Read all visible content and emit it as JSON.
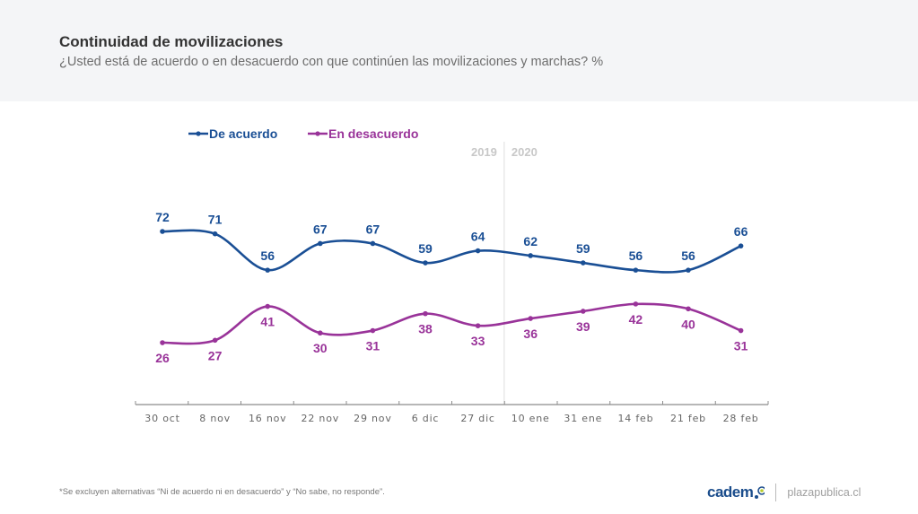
{
  "header": {
    "title": "Continuidad de movilizaciones",
    "subtitle": "¿Usted está de acuerdo o en desacuerdo con que continúen las movilizaciones y marchas? %"
  },
  "chart_data": {
    "type": "line",
    "title": "Continuidad de movilizaciones",
    "subtitle": "¿Usted está de acuerdo o en desacuerdo con que continúen las movilizaciones y marchas? %",
    "xlabel": "",
    "ylabel": "%",
    "categories": [
      "30 oct",
      "8 nov",
      "16 nov",
      "22 nov",
      "29 nov",
      "6 dic",
      "27 dic",
      "10 ene",
      "31 ene",
      "14 feb",
      "21 feb",
      "28 feb"
    ],
    "series": [
      {
        "name": "De acuerdo",
        "color": "#1a4f95",
        "values": [
          72,
          71,
          56,
          67,
          67,
          59,
          64,
          62,
          59,
          56,
          56,
          66
        ],
        "label_position": "above"
      },
      {
        "name": "En desacuerdo",
        "color": "#993399",
        "values": [
          26,
          27,
          41,
          30,
          31,
          38,
          33,
          36,
          39,
          42,
          40,
          31
        ],
        "label_position": "below"
      }
    ],
    "legend": {
      "placement": "top-left",
      "entries": [
        "De acuerdo",
        "En desacuerdo"
      ]
    },
    "annotations": [
      {
        "type": "year-divider",
        "between": [
          "27 dic",
          "10 ene"
        ],
        "left_label": "2019",
        "right_label": "2020"
      }
    ],
    "grid": false,
    "ylim": [
      0,
      100
    ],
    "smoothed": true
  },
  "footer": {
    "footnote": "*Se excluyen alternativas “Ni de acuerdo ni en desacuerdo” y “No sabe, no responde”.",
    "brand": "cadem",
    "site": "plazapublica.cl"
  },
  "colors": {
    "header_bg": "#f4f5f7",
    "axis": "#8c8c8c",
    "year_label": "#c8c8c8",
    "cadem_blue": "#1b4d8c",
    "cadem_green": "#b5cc2e"
  }
}
